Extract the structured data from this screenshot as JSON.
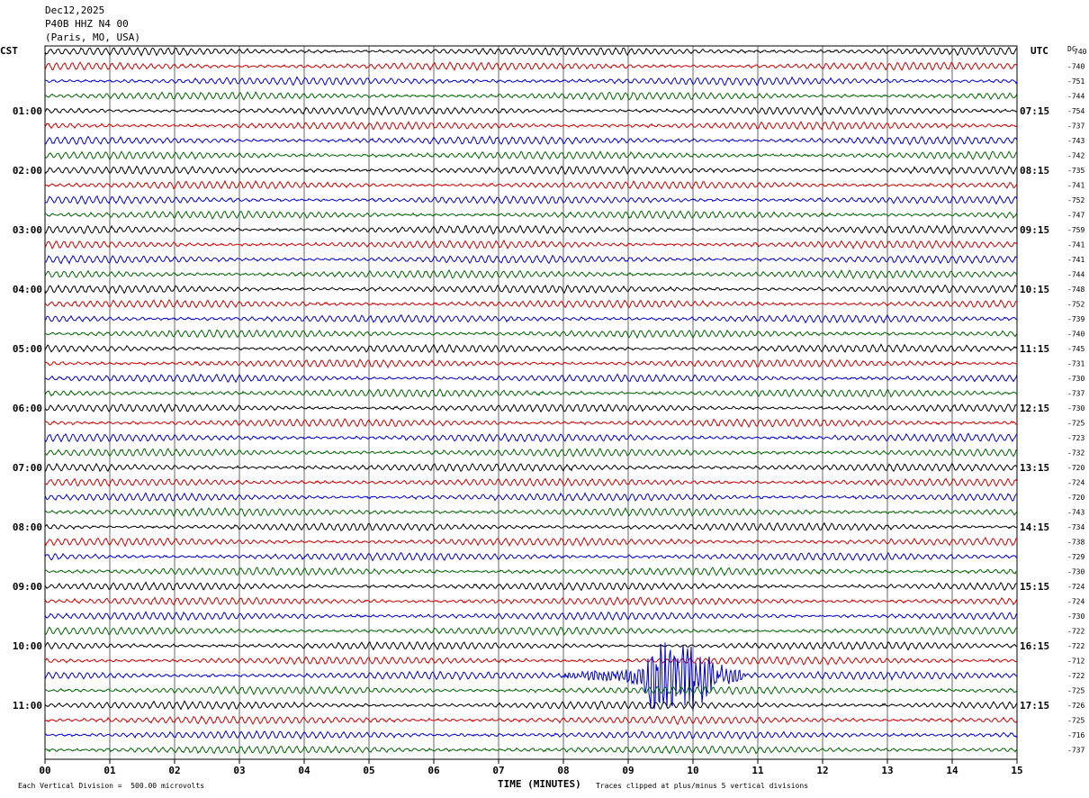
{
  "header": {
    "date": "Dec12,2025",
    "station": "P40B HHZ N4 00",
    "location": "(Paris, MO, USA)"
  },
  "left_tz": "CST",
  "right_tz": "UTC",
  "dc_label": "DC",
  "footer": {
    "xlabel": "TIME (MINUTES)",
    "scale_note": "Each Vertical Division =  500.00 microvolts",
    "clip_note": "Traces clipped at plus/minus 5 vertical divisions"
  },
  "colors": {
    "cycle": [
      "#000000",
      "#cc0000",
      "#0000cc",
      "#006600"
    ],
    "grid": "#000000"
  },
  "chart_data": {
    "type": "line",
    "title": "",
    "xlabel": "TIME (MINUTES)",
    "xlim": [
      0,
      15
    ],
    "x_ticks": [
      "00",
      "01",
      "02",
      "03",
      "04",
      "05",
      "06",
      "07",
      "08",
      "09",
      "10",
      "11",
      "12",
      "13",
      "14",
      "15"
    ],
    "rows": 48,
    "row_minutes": 15,
    "left_hour_labels": [
      "01:00",
      "02:00",
      "03:00",
      "04:00",
      "05:00",
      "06:00",
      "07:00",
      "08:00",
      "09:00",
      "10:00",
      "11:00"
    ],
    "right_hour_labels": [
      "07:15",
      "08:15",
      "09:15",
      "10:15",
      "11:15",
      "12:15",
      "13:15",
      "14:15",
      "15:15",
      "16:15",
      "17:15"
    ],
    "dc_offsets": [
      -740,
      -751,
      -744,
      -754,
      -737,
      -743,
      -742,
      -735,
      -741,
      -752,
      -747,
      -759,
      -741,
      -741,
      -744,
      -748,
      -752,
      -739,
      -740,
      -745,
      -731,
      -730,
      -737,
      -730,
      -725,
      -723,
      -732,
      -720,
      -724,
      -720,
      -743,
      -734,
      -738,
      -729,
      -730,
      -724,
      -724,
      -730,
      -722,
      -722,
      -712,
      -722,
      -725,
      -726,
      -725,
      -716,
      -737
    ],
    "event": {
      "row": 42,
      "start_min": 8.0,
      "peak_min": 9.75,
      "end_min": 10.8,
      "clipped": true
    }
  }
}
